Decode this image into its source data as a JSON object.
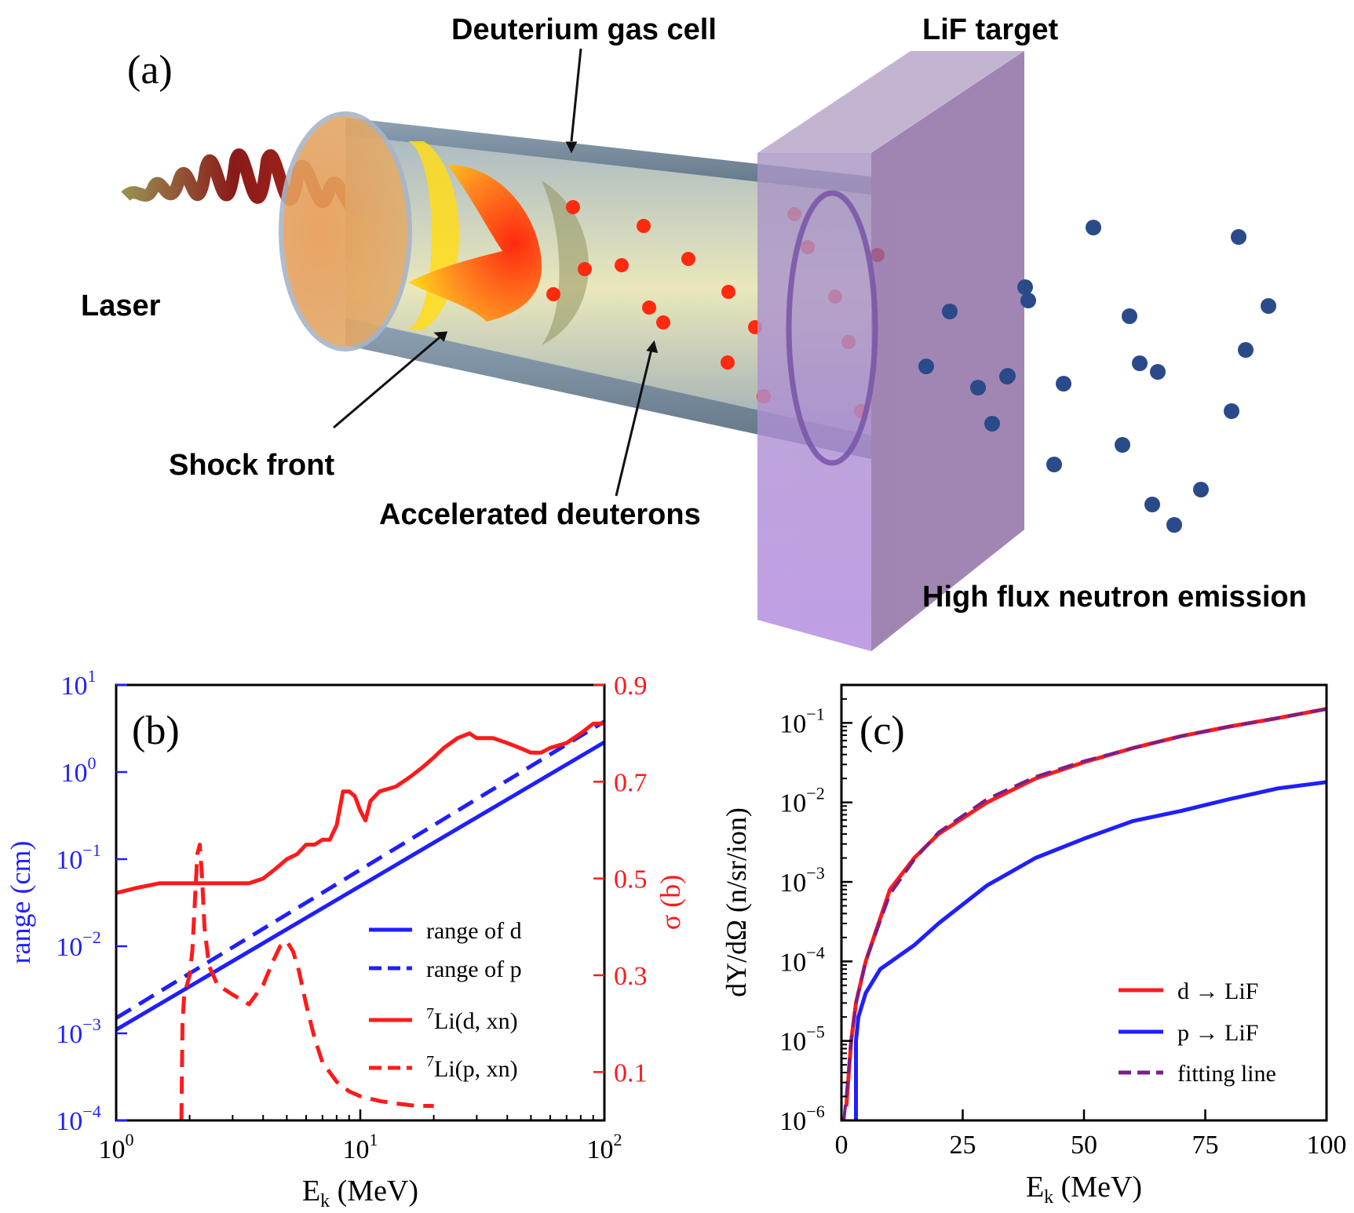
{
  "colors": {
    "blue": "#1f1fff",
    "red": "#ff1a1a",
    "purple": "#7a1e8c",
    "neutron": "#2a4a8a",
    "deuteron": "#ff2a10"
  },
  "panel_a": {
    "label": "(a)",
    "labels": {
      "gas_cell": "Deuterium gas cell",
      "target": "LiF target",
      "laser": "Laser",
      "shock": "Shock front",
      "deuterons": "Accelerated deuterons",
      "neutrons": "High flux neutron emission"
    }
  },
  "chart_data": [
    {
      "panel": "(b)",
      "type": "line",
      "xlabel": "E",
      "xlabel_sub": "k",
      "xlabel_unit": " (MeV)",
      "xscale": "log",
      "xlim": [
        1,
        100
      ],
      "x_ticks": [
        {
          "base": "10",
          "exp": "0",
          "value": 1
        },
        {
          "base": "10",
          "exp": "1",
          "value": 10
        },
        {
          "base": "10",
          "exp": "2",
          "value": 100
        }
      ],
      "y_left": {
        "label": "range (cm)",
        "scale": "log",
        "lim": [
          0.0001,
          10
        ],
        "ticks": [
          {
            "base": "10",
            "exp": "1",
            "value": 10
          },
          {
            "base": "10",
            "exp": "0",
            "value": 1
          },
          {
            "base": "10",
            "exp": "−1",
            "value": 0.1
          },
          {
            "base": "10",
            "exp": "−2",
            "value": 0.01
          },
          {
            "base": "10",
            "exp": "−3",
            "value": 0.001
          },
          {
            "base": "10",
            "exp": "−4",
            "value": 0.0001
          }
        ]
      },
      "y_right": {
        "label": "σ (b)",
        "scale": "linear",
        "lim": [
          0,
          0.9
        ],
        "ticks": [
          "0.9",
          "0.7",
          "0.5",
          "0.3",
          "0.1"
        ]
      },
      "legend_position": "center-right",
      "series": [
        {
          "name": "range of d",
          "axis": "left",
          "style": "solid",
          "color": "#1f1fff",
          "x": [
            1,
            100
          ],
          "y": [
            0.0011,
            2.2
          ]
        },
        {
          "name": "range of p",
          "axis": "left",
          "style": "dashed",
          "color": "#1f1fff",
          "x": [
            1,
            100
          ],
          "y": [
            0.0015,
            3.8
          ]
        },
        {
          "name": "Li(d,  xn)",
          "name_sup": "7",
          "axis": "right",
          "style": "solid",
          "color": "#ff1a1a",
          "x": [
            1,
            1.2,
            1.5,
            2,
            2.5,
            3,
            3.5,
            4,
            4.5,
            5,
            5.5,
            6,
            6.5,
            7,
            7.5,
            8,
            8.5,
            9,
            9.5,
            10,
            10.5,
            11,
            12,
            14,
            16,
            18,
            20,
            22,
            25,
            28,
            30,
            35,
            40,
            45,
            50,
            55,
            60,
            70,
            80,
            90,
            100
          ],
          "y": [
            0.47,
            0.48,
            0.49,
            0.49,
            0.49,
            0.49,
            0.49,
            0.5,
            0.52,
            0.54,
            0.55,
            0.57,
            0.57,
            0.58,
            0.58,
            0.61,
            0.68,
            0.68,
            0.67,
            0.64,
            0.62,
            0.66,
            0.68,
            0.69,
            0.71,
            0.73,
            0.75,
            0.77,
            0.79,
            0.8,
            0.79,
            0.79,
            0.78,
            0.77,
            0.76,
            0.76,
            0.77,
            0.78,
            0.8,
            0.82,
            0.82
          ]
        },
        {
          "name": "Li(p,  xn)",
          "name_sup": "7",
          "axis": "right",
          "style": "dashed",
          "color": "#ff1a1a",
          "x": [
            1.85,
            1.87,
            1.9,
            1.95,
            2.0,
            2.05,
            2.1,
            2.15,
            2.2,
            2.25,
            2.3,
            2.4,
            2.6,
            3.0,
            3.5,
            4.0,
            4.4,
            4.7,
            5.0,
            5.3,
            5.6,
            6.0,
            6.5,
            7.0,
            8.0,
            9.0,
            10.0,
            12.0,
            14.0,
            17.0,
            20.0
          ],
          "y": [
            0.0,
            0.2,
            0.26,
            0.28,
            0.3,
            0.35,
            0.45,
            0.55,
            0.57,
            0.5,
            0.4,
            0.32,
            0.28,
            0.26,
            0.24,
            0.28,
            0.33,
            0.36,
            0.37,
            0.35,
            0.31,
            0.24,
            0.17,
            0.12,
            0.08,
            0.06,
            0.05,
            0.04,
            0.035,
            0.03,
            0.03
          ]
        }
      ]
    },
    {
      "panel": "(c)",
      "type": "line",
      "xlabel": "E",
      "xlabel_sub": "k",
      "xlabel_unit": " (MeV)",
      "ylabel": "dY/dΩ (n/sr/ion)",
      "xscale": "linear",
      "xlim": [
        0,
        100
      ],
      "x_ticks": [
        "0",
        "25",
        "50",
        "75",
        "100"
      ],
      "yscale": "log",
      "ylim": [
        1e-06,
        0.3
      ],
      "y_ticks": [
        {
          "base": "10",
          "exp": "−1",
          "value": 0.1
        },
        {
          "base": "10",
          "exp": "−2",
          "value": 0.01
        },
        {
          "base": "10",
          "exp": "−3",
          "value": 0.001
        },
        {
          "base": "10",
          "exp": "−4",
          "value": 0.0001
        },
        {
          "base": "10",
          "exp": "−5",
          "value": 1e-05
        },
        {
          "base": "10",
          "exp": "−6",
          "value": 1e-06
        }
      ],
      "legend_position": "bottom-right",
      "series": [
        {
          "name": "d → LiF",
          "style": "solid",
          "color": "#ff1a1a",
          "x": [
            1,
            2,
            3,
            5,
            10,
            15,
            20,
            30,
            40,
            50,
            60,
            70,
            80,
            90,
            100
          ],
          "y": [
            1.5e-06,
            1e-05,
            3e-05,
            0.0001,
            0.0008,
            0.002,
            0.004,
            0.01,
            0.02,
            0.032,
            0.048,
            0.068,
            0.09,
            0.115,
            0.15
          ]
        },
        {
          "name": "p → LiF",
          "style": "solid",
          "color": "#1f1fff",
          "x": [
            3,
            3,
            3.5,
            5,
            8,
            15,
            20,
            30,
            40,
            50,
            60,
            70,
            80,
            90,
            100
          ],
          "y": [
            1e-06,
            1e-05,
            2e-05,
            4e-05,
            8e-05,
            0.00016,
            0.0003,
            0.0009,
            0.002,
            0.0035,
            0.0058,
            0.0078,
            0.011,
            0.015,
            0.018
          ]
        },
        {
          "name": "fitting line",
          "style": "dashed",
          "color": "#7a1e8c",
          "x": [
            0.5,
            1,
            2,
            3,
            5,
            10,
            15,
            20,
            30,
            40,
            50,
            60,
            70,
            80,
            90,
            100
          ],
          "y": [
            1e-06,
            2e-06,
            1e-05,
            3e-05,
            0.0001,
            0.0007,
            0.0019,
            0.0042,
            0.011,
            0.021,
            0.033,
            0.048,
            0.068,
            0.09,
            0.115,
            0.15
          ]
        }
      ]
    }
  ]
}
